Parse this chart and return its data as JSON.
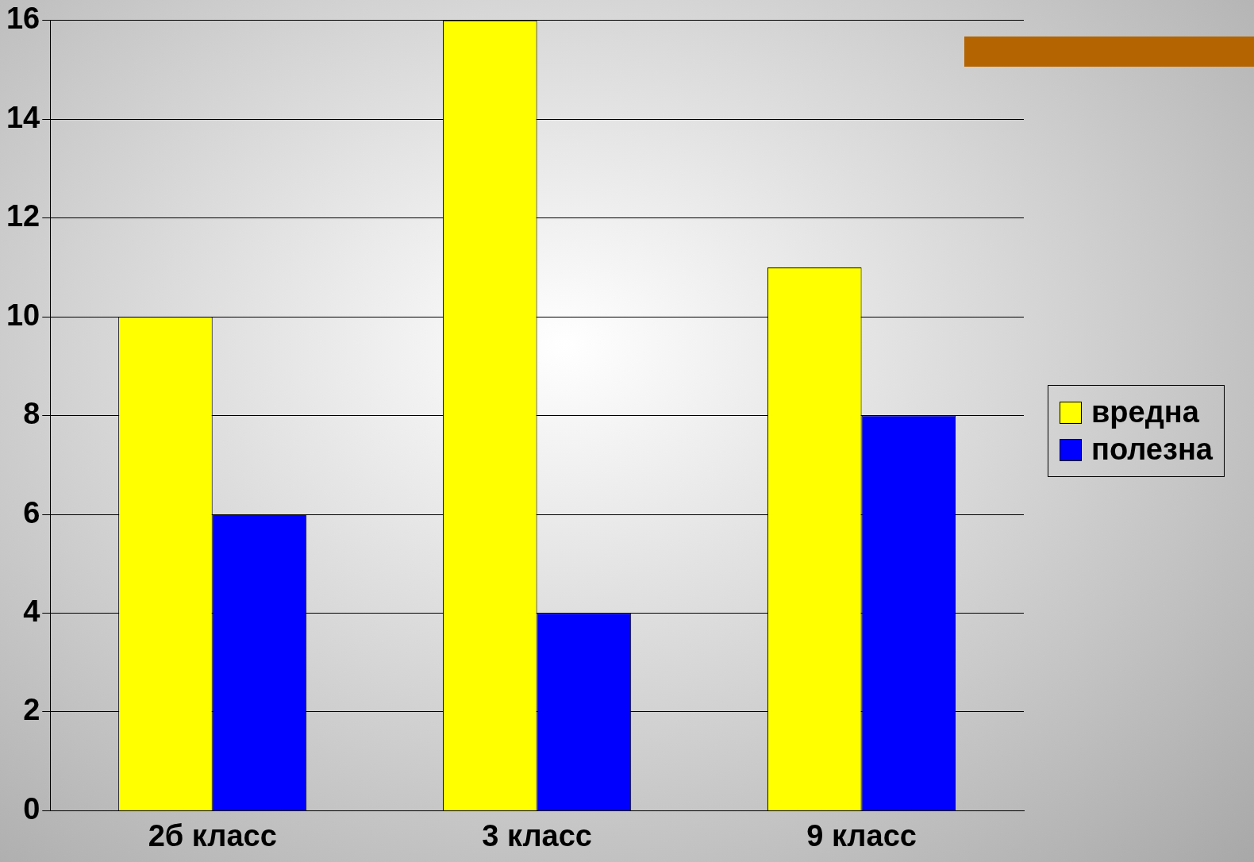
{
  "chart_data": {
    "type": "bar",
    "categories": [
      "2б класс",
      "3 класс",
      "9 класс"
    ],
    "series": [
      {
        "name": "вредна",
        "color": "#ffff00",
        "values": [
          10,
          16,
          11
        ]
      },
      {
        "name": "полезна",
        "color": "#0000ff",
        "values": [
          6,
          4,
          8
        ]
      }
    ],
    "ylim": [
      0,
      16
    ],
    "yticks": [
      0,
      2,
      4,
      6,
      8,
      10,
      12,
      14,
      16
    ],
    "grid": "y",
    "legend": "right"
  }
}
